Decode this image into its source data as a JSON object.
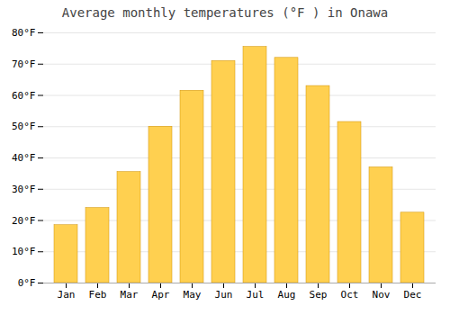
{
  "chart_data": {
    "type": "bar",
    "title": "Average monthly temperatures (°F ) in Onawa",
    "categories": [
      "Jan",
      "Feb",
      "Mar",
      "Apr",
      "May",
      "Jun",
      "Jul",
      "Aug",
      "Sep",
      "Oct",
      "Nov",
      "Dec"
    ],
    "values": [
      18.5,
      24.0,
      35.5,
      50.0,
      61.5,
      71.0,
      75.5,
      72.0,
      63.0,
      51.5,
      37.0,
      22.5
    ],
    "color": "#FFD050",
    "ylim": [
      0,
      80
    ],
    "yticks": [
      {
        "value": 0,
        "label": "0°F"
      },
      {
        "value": 10,
        "label": "10°F"
      },
      {
        "value": 20,
        "label": "20°F"
      },
      {
        "value": 30,
        "label": "30°F"
      },
      {
        "value": 40,
        "label": "40°F"
      },
      {
        "value": 50,
        "label": "50°F"
      },
      {
        "value": 60,
        "label": "60°F"
      },
      {
        "value": 70,
        "label": "70°F"
      },
      {
        "value": 80,
        "label": "80°F"
      }
    ],
    "grid": true
  }
}
